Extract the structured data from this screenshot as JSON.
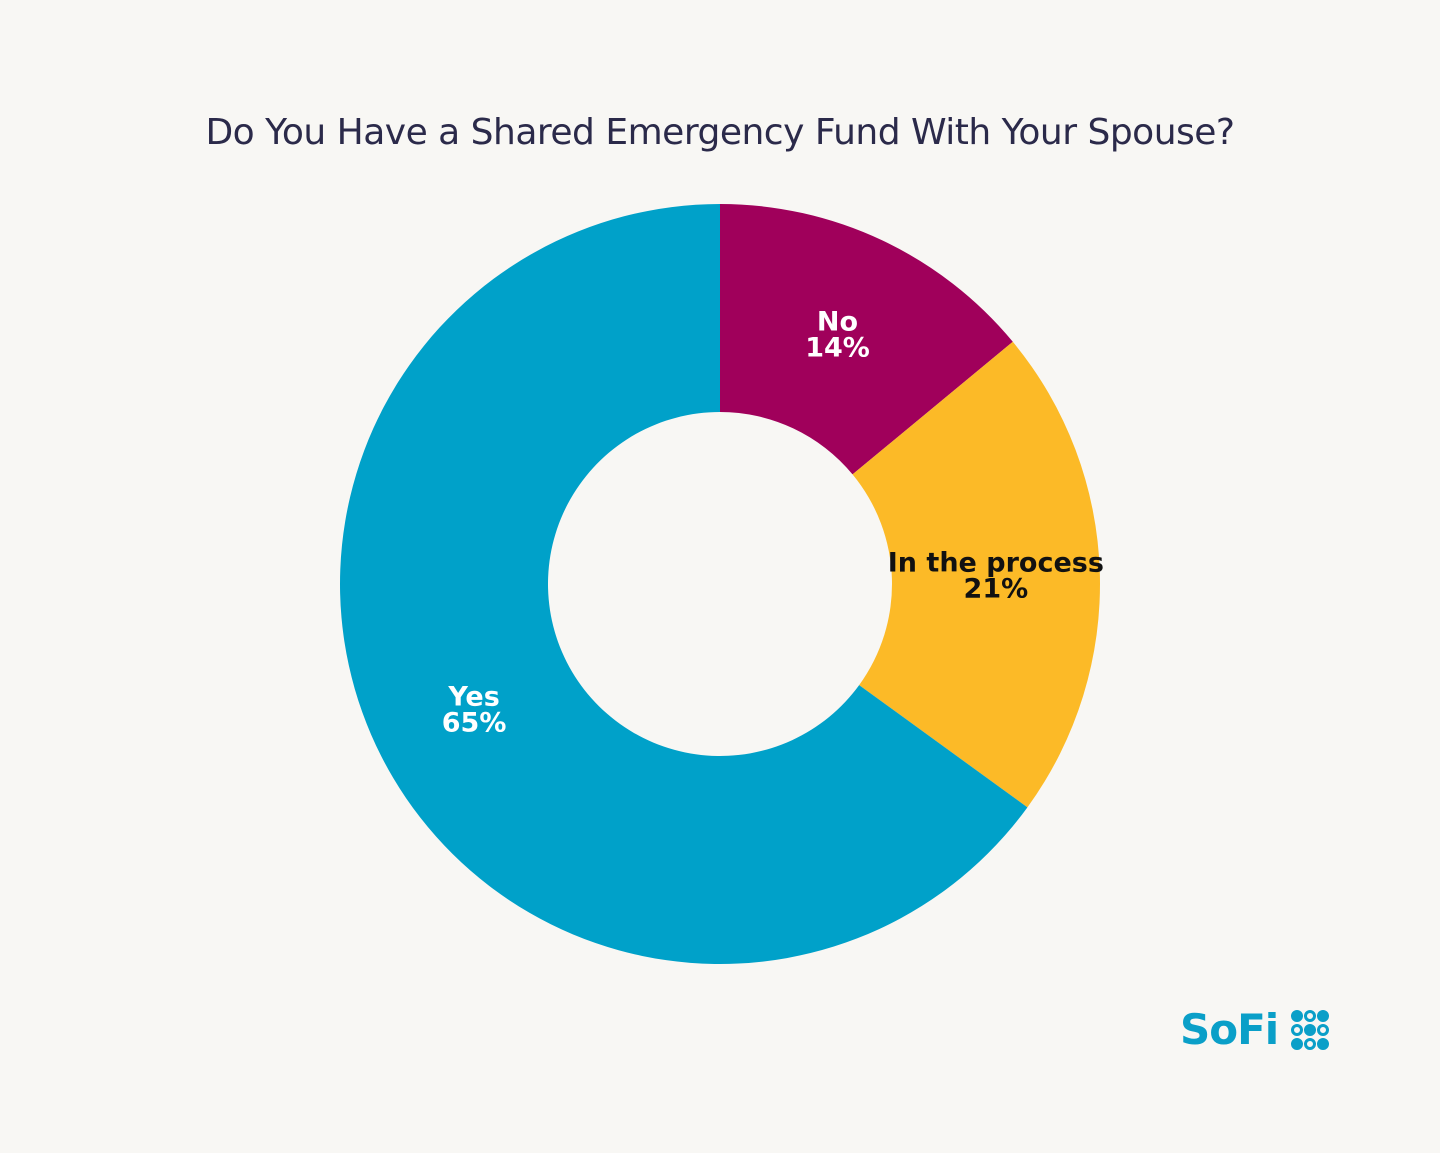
{
  "chart_data": {
    "type": "pie",
    "variant": "donut",
    "title": "Do You Have a Shared Emergency Fund With Your Spouse?",
    "slices": [
      {
        "label": "No",
        "value": 14,
        "value_label": "14%",
        "color": "#a0005b",
        "label_color": "#ffffff"
      },
      {
        "label": "In the process",
        "value": 21,
        "value_label": "21%",
        "color": "#fcba27",
        "label_color": "#111111"
      },
      {
        "label": "Yes",
        "value": 65,
        "value_label": "65%",
        "color": "#00a1c9",
        "label_color": "#ffffff"
      }
    ],
    "start_angle": "12 o'clock",
    "direction": "clockwise",
    "legend": "none"
  },
  "brand": {
    "name": "SoFi",
    "color": "#0a9fc8",
    "mark_icon": "sofi-dots-icon"
  }
}
